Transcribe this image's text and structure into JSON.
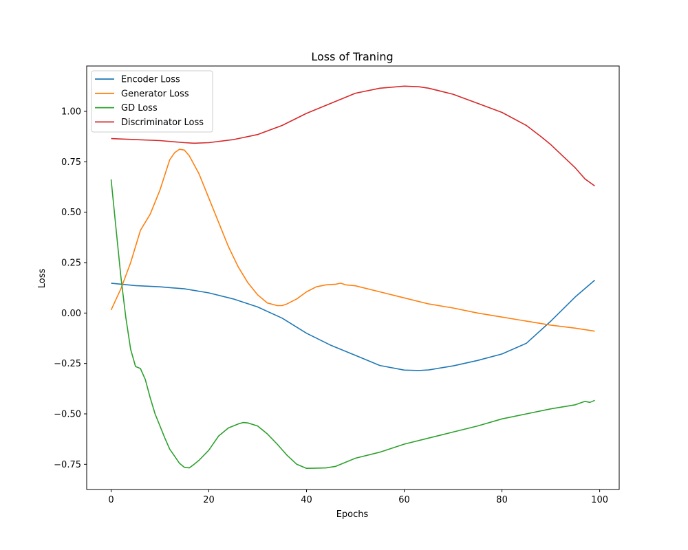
{
  "chart_data": {
    "type": "line",
    "title": "Loss of Traning",
    "xlabel": "Epochs",
    "ylabel": "Loss",
    "xlim": [
      -5,
      104
    ],
    "ylim": [
      -0.875,
      1.225
    ],
    "xticks": [
      0,
      20,
      40,
      60,
      80,
      100
    ],
    "xtick_labels": [
      "0",
      "20",
      "40",
      "60",
      "80",
      "100"
    ],
    "yticks": [
      -0.75,
      -0.5,
      -0.25,
      0.0,
      0.25,
      0.5,
      0.75,
      1.0
    ],
    "ytick_labels": [
      "−0.75",
      "−0.50",
      "−0.25",
      "0.00",
      "0.25",
      "0.50",
      "0.75",
      "1.00"
    ],
    "grid": false,
    "legend_position": "top-left",
    "series": [
      {
        "name": "Encoder Loss",
        "color": "#1f77b4",
        "x": [
          0,
          5,
          10,
          15,
          20,
          25,
          30,
          35,
          40,
          45,
          50,
          55,
          60,
          63,
          65,
          70,
          75,
          80,
          85,
          90,
          95,
          99
        ],
        "y": [
          0.148,
          0.136,
          0.13,
          0.12,
          0.1,
          0.07,
          0.03,
          -0.025,
          -0.1,
          -0.16,
          -0.21,
          -0.26,
          -0.283,
          -0.285,
          -0.282,
          -0.262,
          -0.235,
          -0.203,
          -0.15,
          -0.04,
          0.08,
          0.163
        ]
      },
      {
        "name": "Generator Loss",
        "color": "#ff7f0e",
        "x": [
          0,
          2,
          4,
          6,
          8,
          10,
          12,
          13,
          14,
          15,
          16,
          18,
          20,
          22,
          24,
          26,
          28,
          30,
          32,
          34,
          35,
          36,
          38,
          40,
          42,
          44,
          46,
          47,
          48,
          50,
          55,
          60,
          65,
          70,
          75,
          80,
          85,
          90,
          95,
          99
        ],
        "y": [
          0.015,
          0.12,
          0.25,
          0.41,
          0.49,
          0.61,
          0.76,
          0.795,
          0.812,
          0.808,
          0.78,
          0.69,
          0.57,
          0.45,
          0.33,
          0.23,
          0.15,
          0.09,
          0.05,
          0.037,
          0.037,
          0.045,
          0.07,
          0.105,
          0.13,
          0.14,
          0.143,
          0.148,
          0.14,
          0.135,
          0.105,
          0.075,
          0.045,
          0.025,
          0.0,
          -0.02,
          -0.04,
          -0.06,
          -0.075,
          -0.09
        ]
      },
      {
        "name": "GD Loss",
        "color": "#2ca02c",
        "x": [
          0,
          1,
          2,
          3,
          4,
          5,
          6,
          7,
          8,
          9,
          10,
          11,
          12,
          13,
          14,
          15,
          16,
          17,
          18,
          20,
          22,
          24,
          26,
          27,
          28,
          30,
          32,
          34,
          36,
          38,
          40,
          42,
          44,
          46,
          50,
          55,
          60,
          65,
          70,
          75,
          80,
          85,
          90,
          95,
          97,
          98,
          99
        ],
        "y": [
          0.663,
          0.42,
          0.18,
          -0.02,
          -0.18,
          -0.265,
          -0.275,
          -0.33,
          -0.42,
          -0.5,
          -0.56,
          -0.62,
          -0.675,
          -0.71,
          -0.745,
          -0.765,
          -0.768,
          -0.75,
          -0.73,
          -0.68,
          -0.61,
          -0.57,
          -0.55,
          -0.543,
          -0.545,
          -0.56,
          -0.6,
          -0.65,
          -0.705,
          -0.75,
          -0.77,
          -0.769,
          -0.768,
          -0.76,
          -0.72,
          -0.69,
          -0.65,
          -0.62,
          -0.59,
          -0.56,
          -0.525,
          -0.5,
          -0.475,
          -0.455,
          -0.438,
          -0.443,
          -0.433
        ]
      },
      {
        "name": "Discriminator Loss",
        "color": "#d62728",
        "x": [
          0,
          5,
          10,
          15,
          17,
          20,
          25,
          30,
          35,
          40,
          45,
          50,
          55,
          60,
          63,
          65,
          70,
          75,
          80,
          85,
          88,
          90,
          95,
          97,
          99
        ],
        "y": [
          0.865,
          0.86,
          0.855,
          0.845,
          0.842,
          0.845,
          0.86,
          0.885,
          0.93,
          0.99,
          1.04,
          1.09,
          1.115,
          1.125,
          1.122,
          1.115,
          1.085,
          1.04,
          0.995,
          0.93,
          0.875,
          0.835,
          0.72,
          0.665,
          0.63
        ]
      }
    ]
  }
}
